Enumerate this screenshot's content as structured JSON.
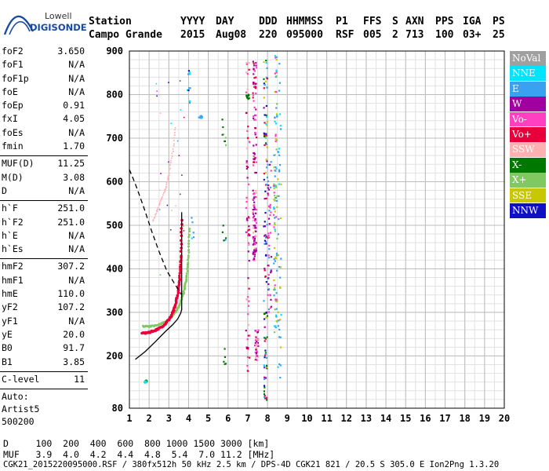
{
  "logo": {
    "line1": "Lowell",
    "line2": "DIGISONDE"
  },
  "header": {
    "labels": [
      "Station",
      "YYYY",
      "DAY",
      "DDD",
      "HHMMSS",
      "P1",
      "FFS",
      "S",
      "AXN",
      "PPS",
      "IGA",
      "PS"
    ],
    "values": [
      "Campo Grande",
      "2015",
      "Aug08",
      "220",
      "095000",
      "RSF",
      "005",
      "2",
      "713",
      "100",
      "03+",
      "25"
    ]
  },
  "params": {
    "group1": [
      {
        "k": "foF2",
        "v": "3.650"
      },
      {
        "k": "foF1",
        "v": "N/A"
      },
      {
        "k": "foF1p",
        "v": "N/A"
      },
      {
        "k": "foE",
        "v": "N/A"
      },
      {
        "k": "foEp",
        "v": "0.91"
      },
      {
        "k": "fxI",
        "v": "4.05"
      },
      {
        "k": "foEs",
        "v": "N/A"
      },
      {
        "k": "fmin",
        "v": "1.70"
      }
    ],
    "group2": [
      {
        "k": "MUF(D)",
        "v": "11.25"
      },
      {
        "k": "M(D)",
        "v": "3.08"
      },
      {
        "k": "D",
        "v": "N/A"
      }
    ],
    "group3": [
      {
        "k": "h`F",
        "v": "251.0"
      },
      {
        "k": "h`F2",
        "v": "251.0"
      },
      {
        "k": "h`E",
        "v": "N/A"
      },
      {
        "k": "h`Es",
        "v": "N/A"
      }
    ],
    "group4": [
      {
        "k": "hmF2",
        "v": "307.2"
      },
      {
        "k": "hmF1",
        "v": "N/A"
      },
      {
        "k": "hmE",
        "v": "110.0"
      },
      {
        "k": "yF2",
        "v": "107.2"
      },
      {
        "k": "yF1",
        "v": "N/A"
      },
      {
        "k": "yE",
        "v": "20.0"
      },
      {
        "k": "B0",
        "v": "91.7"
      },
      {
        "k": "B1",
        "v": "3.85"
      }
    ],
    "group5": [
      {
        "k": "C-level",
        "v": "11"
      }
    ],
    "auto": [
      "Auto:",
      "Artist5",
      "500200"
    ]
  },
  "legend": [
    {
      "label": "NoVal",
      "color": "#a0a0a0"
    },
    {
      "label": "NNE",
      "color": "#00e5ff"
    },
    {
      "label": "E",
      "color": "#3aa0f0"
    },
    {
      "label": "W",
      "color": "#a000a0"
    },
    {
      "label": "Vo-",
      "color": "#ff40c0"
    },
    {
      "label": "Vo+",
      "color": "#e8003c"
    },
    {
      "label": "SSW",
      "color": "#ffb0b0"
    },
    {
      "label": "X-",
      "color": "#007800"
    },
    {
      "label": "X+",
      "color": "#80c860"
    },
    {
      "label": "SSE",
      "color": "#c8c800"
    },
    {
      "label": "NNW",
      "color": "#1010c0"
    }
  ],
  "footer": {
    "d_row": "D     100  200  400  600  800 1000 1500 3000 [km]",
    "muf_row": "MUF   3.9  4.0  4.2  4.4  4.8  5.4  7.0 11.2 [MHz]",
    "file_row": "CGK21_2015220095000.RSF / 380fx512h 50 kHz 2.5 km / DPS-4D CGK21 821 / 20.5 S 305.0 E Ion2Png 1.3.20"
  },
  "chart_data": {
    "type": "scatter",
    "xlim": [
      1,
      20
    ],
    "ylim": [
      80,
      900
    ],
    "x_ticks": [
      1,
      2,
      3,
      4,
      5,
      6,
      7,
      8,
      9,
      10,
      11,
      12,
      13,
      14,
      15,
      16,
      17,
      18,
      19,
      20
    ],
    "y_ticks": [
      80,
      200,
      300,
      400,
      500,
      600,
      700,
      800,
      900
    ],
    "grid": true,
    "ordinary_trace": {
      "name": "Vo+",
      "f": [
        1.65,
        2.0,
        2.4,
        2.8,
        3.1,
        3.3,
        3.45,
        3.55,
        3.62,
        3.65
      ],
      "h": [
        252,
        254,
        260,
        272,
        290,
        312,
        340,
        380,
        430,
        520
      ]
    },
    "extraordinary_trace": {
      "name": "X+",
      "f": [
        1.7,
        2.1,
        2.6,
        3.0,
        3.3,
        3.55,
        3.75,
        3.9,
        4.0,
        4.05
      ],
      "h": [
        268,
        268,
        273,
        283,
        298,
        318,
        345,
        380,
        430,
        500
      ]
    },
    "oblique_trace": {
      "f": [
        2.2,
        2.5,
        2.8,
        3.0,
        3.2,
        3.35
      ],
      "h": [
        510,
        545,
        580,
        615,
        670,
        730
      ]
    },
    "profile_curve": {
      "f": [
        1.3,
        1.8,
        2.3,
        2.8,
        3.2,
        3.45,
        3.6,
        3.65
      ],
      "h": [
        192,
        210,
        232,
        255,
        272,
        285,
        298,
        307
      ]
    },
    "muf_curve": {
      "f": [
        1.0,
        1.3,
        1.7,
        2.1,
        2.5,
        2.9,
        3.3,
        3.65
      ],
      "h": [
        628,
        595,
        545,
        490,
        440,
        395,
        365,
        340
      ]
    }
  }
}
